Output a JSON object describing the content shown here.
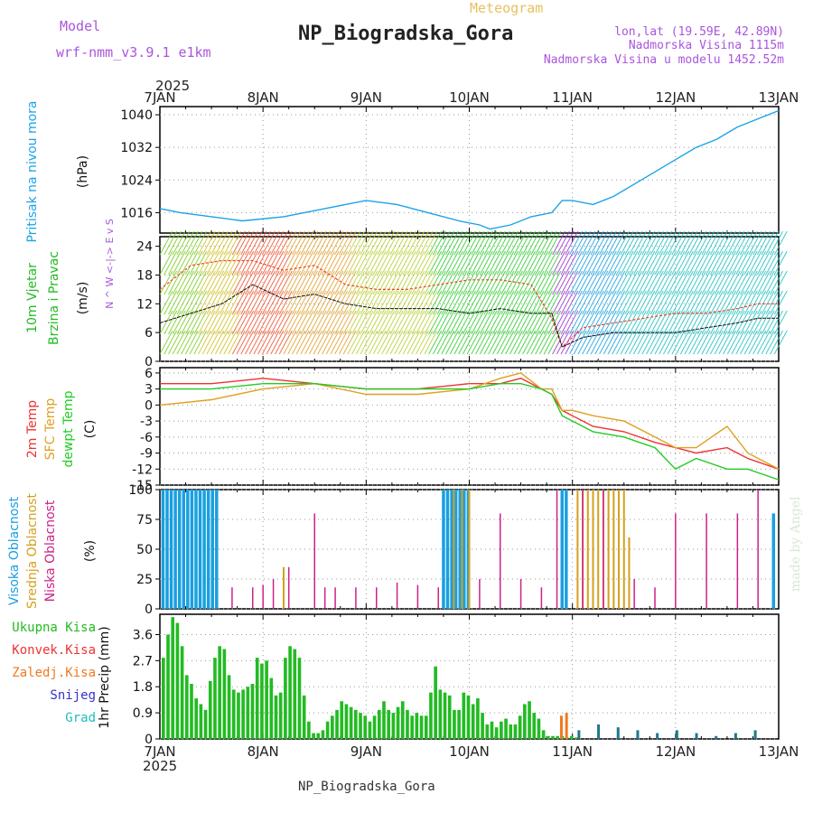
{
  "header": {
    "model_label": "Model",
    "model_name": "wrf-nmm_v3.9.1 e1km",
    "subtitle": "Meteogram",
    "title": "NP_Biogradska_Gora",
    "lonlat": "lon,lat (19.59E, 42.89N)",
    "elevation": "Nadmorska Visina 1115m",
    "model_elevation": "Nadmorska Visina u modelu 1452.52m",
    "year_top": "2025",
    "year_bottom": "2025",
    "footer": "NP_Biogradska_Gora",
    "watermark": "made by Angel"
  },
  "colors": {
    "pressure": "#1aa3e6",
    "wind_label": "#22bb22",
    "temp_2m": "#ee3333",
    "temp_sfc": "#e0a020",
    "temp_dew": "#22cc22",
    "cloud_high": "#1a9fe0",
    "cloud_mid": "#d4a020",
    "cloud_low": "#cc2288",
    "precip_total": "#22bb22",
    "precip_conv": "#ee3333",
    "precip_frz": "#f07a20",
    "precip_snow": "#3333cc",
    "precip_grad": "#22bbbb",
    "header_purple": "#aa55dd",
    "header_orange": "#e8c060"
  },
  "chart_data": [
    {
      "type": "line",
      "panel": "pressure",
      "ylabel_1": "Pritisak na nivou mora",
      "ylabel_2": "(hPa)",
      "x_ticks": [
        "7JAN",
        "8JAN",
        "9JAN",
        "10JAN",
        "11JAN",
        "12JAN",
        "13JAN"
      ],
      "y_ticks": [
        "1016",
        "1024",
        "1032",
        "1040"
      ],
      "ylim": [
        1011,
        1042
      ],
      "grid": true,
      "series": [
        {
          "x": [
            0,
            0.2,
            0.5,
            0.8,
            1.2,
            1.6,
            2.0,
            2.3,
            2.6,
            2.9,
            3.1,
            3.2,
            3.4,
            3.6,
            3.8,
            3.9,
            4.0,
            4.2,
            4.4,
            4.6,
            4.8,
            5.0,
            5.2,
            5.4,
            5.6,
            5.8,
            6.0
          ],
          "values": [
            1017,
            1016,
            1015,
            1014,
            1015,
            1017,
            1019,
            1018,
            1016,
            1014,
            1013,
            1012,
            1013,
            1015,
            1016,
            1019,
            1019,
            1018,
            1020,
            1023,
            1026,
            1029,
            1032,
            1034,
            1037,
            1039,
            1041
          ]
        }
      ]
    },
    {
      "type": "line",
      "panel": "wind",
      "ylabel_1": "10m Vjetar",
      "ylabel_2": "Brzina i Pravac",
      "ylabel_3": "(m/s)",
      "y_ticks": [
        "0",
        "6",
        "12",
        "18",
        "24"
      ],
      "ylim": [
        0,
        26
      ],
      "grid": true,
      "compass": "N ^ W <-|-> E v S",
      "series": [
        {
          "name": "speed",
          "x": [
            0,
            0.3,
            0.6,
            0.9,
            1.2,
            1.5,
            1.8,
            2.1,
            2.4,
            2.7,
            3.0,
            3.3,
            3.6,
            3.8,
            3.9,
            4.1,
            4.4,
            4.7,
            5.0,
            5.3,
            5.6,
            5.8,
            6.0
          ],
          "values": [
            8,
            10,
            12,
            16,
            13,
            14,
            12,
            11,
            11,
            11,
            10,
            11,
            10,
            10,
            3,
            5,
            6,
            6,
            6,
            7,
            8,
            9,
            9
          ]
        },
        {
          "name": "gust",
          "x": [
            0,
            0.3,
            0.6,
            0.9,
            1.2,
            1.5,
            1.8,
            2.1,
            2.4,
            2.7,
            3.0,
            3.3,
            3.6,
            3.8,
            3.9,
            4.1,
            4.4,
            4.7,
            5.0,
            5.3,
            5.6,
            5.8,
            6.0
          ],
          "values": [
            15,
            20,
            21,
            21,
            19,
            20,
            16,
            15,
            15,
            16,
            17,
            17,
            16,
            9,
            3,
            7,
            8,
            9,
            10,
            10,
            11,
            12,
            12
          ]
        }
      ]
    },
    {
      "type": "line",
      "panel": "temperature",
      "ylabel_1": "2m Temp",
      "ylabel_2": "SFC Temp",
      "ylabel_3": "dewpt Temp",
      "ylabel_4": "(C)",
      "y_ticks": [
        "6",
        "3",
        "0",
        "-3",
        "-6",
        "-9",
        "-12",
        "-15"
      ],
      "ylim": [
        -15,
        7
      ],
      "grid": true,
      "series": [
        {
          "name": "2m Temp",
          "x": [
            0,
            0.5,
            1.0,
            1.5,
            2.0,
            2.5,
            3.0,
            3.3,
            3.5,
            3.7,
            3.8,
            3.9,
            4.0,
            4.2,
            4.5,
            4.8,
            5.0,
            5.2,
            5.5,
            5.7,
            6.0
          ],
          "values": [
            4,
            4,
            5,
            4,
            3,
            3,
            4,
            4,
            5,
            3,
            2,
            -1,
            -2,
            -4,
            -5,
            -7,
            -8,
            -9,
            -8,
            -10,
            -12
          ]
        },
        {
          "name": "SFC Temp",
          "x": [
            0,
            0.5,
            1.0,
            1.5,
            2.0,
            2.5,
            3.0,
            3.3,
            3.5,
            3.7,
            3.8,
            3.9,
            4.0,
            4.2,
            4.5,
            4.8,
            5.0,
            5.2,
            5.5,
            5.7,
            6.0
          ],
          "values": [
            0,
            1,
            3,
            4,
            2,
            2,
            3,
            5,
            6,
            3,
            3,
            -1,
            -1,
            -2,
            -3,
            -6,
            -8,
            -8,
            -4,
            -9,
            -12
          ]
        },
        {
          "name": "dewpt Temp",
          "x": [
            0,
            0.5,
            1.0,
            1.5,
            2.0,
            2.5,
            3.0,
            3.3,
            3.5,
            3.7,
            3.8,
            3.9,
            4.0,
            4.2,
            4.5,
            4.8,
            5.0,
            5.2,
            5.5,
            5.7,
            6.0
          ],
          "values": [
            3,
            3,
            4,
            4,
            3,
            3,
            3,
            4,
            4,
            3,
            2,
            -2,
            -3,
            -5,
            -6,
            -8,
            -12,
            -10,
            -12,
            -12,
            -14
          ]
        }
      ]
    },
    {
      "type": "bar",
      "panel": "clouds",
      "ylabel_1": "Visoka Oblacnost",
      "ylabel_2": "Srednja Oblacnost",
      "ylabel_3": "Niska Oblacnost",
      "ylabel_4": "(%)",
      "y_ticks": [
        "0",
        "25",
        "50",
        "75",
        "100"
      ],
      "ylim": [
        0,
        100
      ],
      "grid": true,
      "series": [
        {
          "name": "Visoka Oblacnost",
          "x": [
            0.03,
            0.07,
            0.11,
            0.15,
            0.19,
            0.23,
            0.27,
            0.31,
            0.35,
            0.39,
            0.43,
            0.47,
            0.51,
            0.55,
            2.75,
            2.79,
            2.83,
            2.87,
            2.91,
            2.95,
            2.99,
            3.9,
            3.94,
            5.95
          ],
          "values": [
            100,
            100,
            100,
            100,
            100,
            100,
            100,
            100,
            100,
            100,
            100,
            100,
            100,
            100,
            100,
            100,
            100,
            100,
            100,
            100,
            100,
            100,
            100,
            80
          ]
        },
        {
          "name": "Srednja Oblacnost",
          "x": [
            1.2,
            2.85,
            2.93,
            3.0,
            4.05,
            4.1,
            4.15,
            4.2,
            4.25,
            4.3,
            4.35,
            4.4,
            4.45,
            4.5,
            4.55
          ],
          "values": [
            35,
            100,
            100,
            100,
            100,
            100,
            100,
            100,
            100,
            100,
            100,
            100,
            100,
            100,
            60
          ]
        },
        {
          "name": "Niska Oblacnost",
          "x": [
            0.7,
            0.9,
            1.0,
            1.1,
            1.25,
            1.5,
            1.6,
            1.7,
            1.9,
            2.1,
            2.3,
            2.5,
            2.7,
            3.1,
            3.3,
            3.5,
            3.7,
            3.85,
            4.1,
            4.3,
            4.6,
            4.8,
            5.0,
            5.3,
            5.6,
            5.8
          ],
          "values": [
            18,
            18,
            20,
            25,
            35,
            80,
            18,
            18,
            18,
            18,
            22,
            20,
            18,
            25,
            80,
            25,
            18,
            100,
            100,
            100,
            25,
            18,
            80,
            80,
            80,
            100
          ]
        }
      ]
    },
    {
      "type": "bar",
      "panel": "precip",
      "ylabel_1": "1hr Precip (mm)",
      "y_ticks": [
        "0",
        "0.9",
        "1.8",
        "2.7",
        "3.6"
      ],
      "ylim": [
        0,
        4.3
      ],
      "grid": true,
      "legend": [
        "Ukupna Kisa",
        "Konvek.Kisa",
        "Zaledj.Kisa",
        "Snijeg",
        "Grad"
      ],
      "series": [
        {
          "name": "Ukupna Kisa",
          "values": [
            2.8,
            3.6,
            4.2,
            4.0,
            3.2,
            2.2,
            1.9,
            1.4,
            1.2,
            1.0,
            2.0,
            2.8,
            3.2,
            3.1,
            2.2,
            1.7,
            1.6,
            1.7,
            1.8,
            1.9,
            2.8,
            2.6,
            2.7,
            2.1,
            1.5,
            1.6,
            2.8,
            3.2,
            3.1,
            2.8,
            1.5,
            0.6,
            0.2,
            0.2,
            0.3,
            0.6,
            0.8,
            1.0,
            1.3,
            1.2,
            1.1,
            1.0,
            0.9,
            0.8,
            0.6,
            0.8,
            1.0,
            1.3,
            1.0,
            0.9,
            1.1,
            1.3,
            1.0,
            0.8,
            0.9,
            0.8,
            0.8,
            1.6,
            2.5,
            1.7,
            1.6,
            1.5,
            1.0,
            1.0,
            1.6,
            1.5,
            1.2,
            1.4,
            0.9,
            0.5,
            0.6,
            0.4,
            0.6,
            0.7,
            0.5,
            0.5,
            0.8,
            1.2,
            1.3,
            0.9,
            0.7,
            0.3,
            0.1,
            0.1,
            0.1,
            0.1,
            0.05,
            0.1,
            0.05
          ]
        },
        {
          "name": "Zaledj.Kisa",
          "values": [
            0.8,
            0.9
          ]
        },
        {
          "name": "Grad",
          "values": [
            0.3,
            0.5,
            0.4,
            0.3,
            0.2,
            0.3,
            0.2,
            0.1,
            0.2,
            0.3
          ]
        }
      ]
    }
  ]
}
